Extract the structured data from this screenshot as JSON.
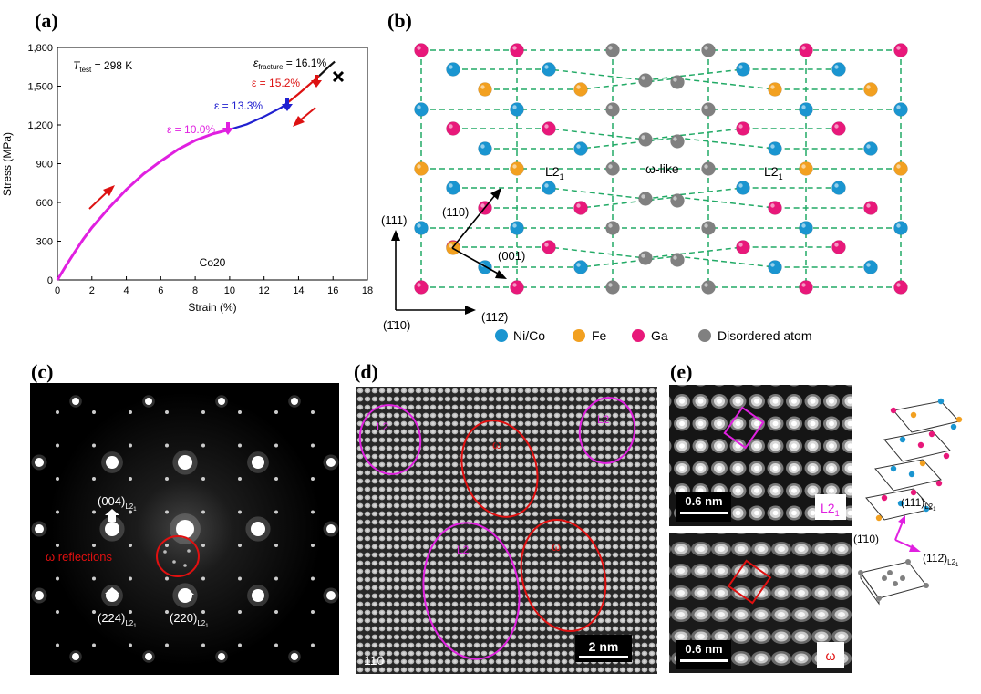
{
  "labels": {
    "a": "(a)",
    "b": "(b)",
    "c": "(c)",
    "d": "(d)",
    "e": "(e)"
  },
  "panel_a": {
    "temp_T": "T",
    "temp_sub": "test",
    "temp_val": " = 298 K",
    "sample": "Co20",
    "ann_fracture_eps": "ε",
    "ann_fracture_sub": "fracture",
    "ann_fracture_val": " = 16.1%",
    "ann_152": "ε = 15.2%",
    "ann_133": "ε = 13.3%",
    "ann_100": "ε = 10.0%",
    "colors": {
      "magenta": "#e020e0",
      "blue": "#2020d0",
      "red": "#dd1111",
      "black": "#111111"
    }
  },
  "chart_data": {
    "type": "line",
    "title": "",
    "xlabel": "Strain (%)",
    "ylabel": "Stress (MPa)",
    "xlim": [
      0,
      18
    ],
    "ylim": [
      0,
      1800
    ],
    "xticks": [
      "0",
      "2",
      "4",
      "6",
      "8",
      "10",
      "12",
      "14",
      "16",
      "18"
    ],
    "yticks": [
      "0",
      "300",
      "600",
      "900",
      "1,200",
      "1,500",
      "1,800"
    ],
    "series": [
      {
        "name": "0-10.0%",
        "color": "#e020e0",
        "x": [
          0,
          0.5,
          1,
          1.5,
          2,
          3,
          4,
          5,
          6,
          7,
          8,
          9,
          10
        ],
        "y": [
          0,
          110,
          215,
          315,
          405,
          560,
          700,
          820,
          920,
          1010,
          1080,
          1130,
          1165
        ]
      },
      {
        "name": "10.0-13.3%",
        "color": "#2020d0",
        "x": [
          10,
          11,
          12,
          13,
          13.3
        ],
        "y": [
          1165,
          1205,
          1265,
          1335,
          1365
        ]
      },
      {
        "name": "13.3-15.2%",
        "color": "#dd1111",
        "x": [
          13.3,
          14,
          15,
          15.2
        ],
        "y": [
          1365,
          1440,
          1555,
          1580
        ]
      },
      {
        "name": "15.2-16.1%",
        "color": "#111111",
        "x": [
          15.2,
          15.8,
          16.1
        ],
        "y": [
          1580,
          1655,
          1690
        ]
      }
    ]
  },
  "panel_b": {
    "L21_left": "L2",
    "L21_right": "L2",
    "L21_sub": "1",
    "omega_like": "ω-like",
    "dir_111": "(111)",
    "dir_110": "(110)",
    "dir_001": "(001)",
    "dir_m110": "(1̄10)",
    "dir_112m": "(112̄)",
    "legend": [
      {
        "label": "Ni/Co",
        "color": "#1a95d0"
      },
      {
        "label": "Fe",
        "color": "#f2a020"
      },
      {
        "label": "Ga",
        "color": "#e8187a"
      },
      {
        "label": "Disordered atom",
        "color": "#808080"
      }
    ]
  },
  "panel_c": {
    "r004": "(004)",
    "r224": "(224)",
    "r220": "(220)",
    "sub": "L2",
    "sub1": "1",
    "omega": "ω reflections"
  },
  "panel_d": {
    "l21_1": "L2",
    "l21_2": "L2",
    "l21_3": "L2",
    "w1": "ω",
    "w2": "ω",
    "zone": "110",
    "scale": "2 nm"
  },
  "panel_e": {
    "scale_top": "0.6 nm",
    "scale_bot": "0.6 nm",
    "tag_top": "L2",
    "tag_top_sub": "1",
    "tag_bot": "ω",
    "d111": "(111)",
    "d112": "(112̄)",
    "dm110": "(1̄10)",
    "sub": "L2",
    "sub1": "1"
  }
}
